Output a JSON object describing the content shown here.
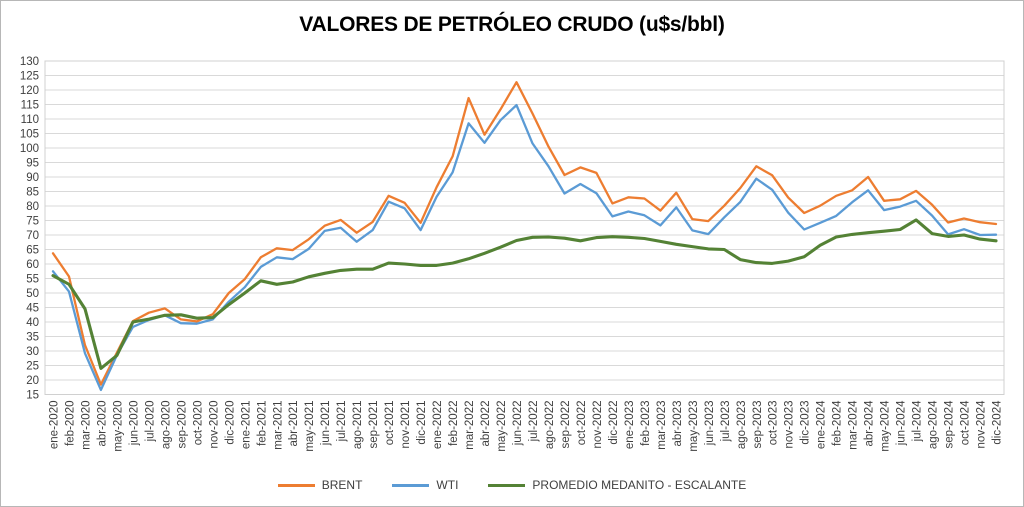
{
  "chart_data": {
    "type": "line",
    "title": "VALORES DE PETRÓLEO CRUDO (u$s/bbl)",
    "xlabel": "",
    "ylabel": "",
    "ylim": [
      15,
      130
    ],
    "y_step": 5,
    "y_ticks": [
      130,
      125,
      120,
      115,
      110,
      105,
      100,
      95,
      90,
      85,
      80,
      75,
      70,
      65,
      60,
      55,
      50,
      45,
      40,
      35,
      30,
      25,
      20,
      15
    ],
    "grid": "horizontal",
    "legend_position": "bottom",
    "colors": {
      "grid": "#d9d9d9",
      "plot_border": "#d0d0d0",
      "axis_text": "#3f3f3f",
      "title_text": "#000000"
    },
    "categories": [
      "ene-2020",
      "feb-2020",
      "mar-2020",
      "abr-2020",
      "may-2020",
      "jun-2020",
      "jul-2020",
      "ago-2020",
      "sep-2020",
      "oct-2020",
      "nov-2020",
      "dic-2020",
      "ene-2021",
      "feb-2021",
      "mar-2021",
      "abr-2021",
      "may-2021",
      "jun-2021",
      "jul-2021",
      "ago-2021",
      "sep-2021",
      "oct-2021",
      "nov-2021",
      "dic-2021",
      "ene-2022",
      "feb-2022",
      "mar-2022",
      "abr-2022",
      "may-2022",
      "jun-2022",
      "jul-2022",
      "ago-2022",
      "sep-2022",
      "oct-2022",
      "nov-2022",
      "dic-2022",
      "ene-2023",
      "feb-2023",
      "mar-2023",
      "abr-2023",
      "may-2023",
      "jun-2023",
      "jul-2023",
      "ago-2023",
      "sep-2023",
      "oct-2023",
      "nov-2023",
      "dic-2023",
      "ene-2024",
      "feb-2024",
      "mar-2024",
      "abr-2024",
      "may-2024",
      "jun-2024",
      "jul-2024",
      "ago-2024",
      "sep-2024",
      "oct-2024",
      "nov-2024",
      "dic-2024"
    ],
    "series": [
      {
        "name": "BRENT",
        "color": "#ED7D31",
        "width": 2.3,
        "values": [
          63.7,
          55.7,
          32.0,
          18.4,
          29.4,
          40.3,
          43.2,
          44.7,
          40.9,
          40.2,
          42.7,
          50.0,
          54.8,
          62.3,
          65.4,
          64.8,
          68.5,
          73.2,
          75.2,
          70.8,
          74.5,
          83.5,
          81.1,
          74.2,
          86.5,
          97.1,
          117.2,
          104.6,
          113.3,
          122.7,
          111.9,
          100.5,
          90.7,
          93.3,
          91.4,
          80.9,
          83.0,
          82.6,
          78.4,
          84.6,
          75.5,
          74.8,
          80.1,
          86.2,
          93.7,
          90.6,
          82.9,
          77.6,
          80.1,
          83.5,
          85.4,
          90.0,
          81.8,
          82.3,
          85.2,
          80.4,
          74.3,
          75.7,
          74.4,
          73.8
        ]
      },
      {
        "name": "WTI",
        "color": "#5B9BD5",
        "width": 2.3,
        "values": [
          57.5,
          50.5,
          29.2,
          16.6,
          28.6,
          38.3,
          40.7,
          42.3,
          39.6,
          39.4,
          40.9,
          47.0,
          52.0,
          59.0,
          62.3,
          61.7,
          65.2,
          71.4,
          72.5,
          67.7,
          71.7,
          81.5,
          79.2,
          71.7,
          83.2,
          91.6,
          108.5,
          101.8,
          109.6,
          114.8,
          101.6,
          93.7,
          84.3,
          87.6,
          84.4,
          76.4,
          78.1,
          76.8,
          73.3,
          79.5,
          71.6,
          70.3,
          76.1,
          81.4,
          89.4,
          85.6,
          77.7,
          71.9,
          74.2,
          76.6,
          81.3,
          85.4,
          78.6,
          79.8,
          81.8,
          76.7,
          70.2,
          72.0,
          70.0,
          70.1
        ]
      },
      {
        "name": "PROMEDIO MEDANITO - ESCALANTE",
        "color": "#548235",
        "width": 3.1,
        "values": [
          56.0,
          53.0,
          44.5,
          24.0,
          28.5,
          40.0,
          41.0,
          42.3,
          42.5,
          41.3,
          41.5,
          46.0,
          50.0,
          54.2,
          53.0,
          53.8,
          55.6,
          56.8,
          57.8,
          58.2,
          58.2,
          60.3,
          60.0,
          59.5,
          59.5,
          60.3,
          61.8,
          63.7,
          65.8,
          68.1,
          69.2,
          69.3,
          68.9,
          68.0,
          69.1,
          69.4,
          69.2,
          68.8,
          67.8,
          66.8,
          66.0,
          65.2,
          65.0,
          61.5,
          60.5,
          60.2,
          61.0,
          62.5,
          66.5,
          69.3,
          70.2,
          70.8,
          71.3,
          71.9,
          75.2,
          70.5,
          69.5,
          70.0,
          68.6,
          68.0
        ]
      }
    ]
  }
}
